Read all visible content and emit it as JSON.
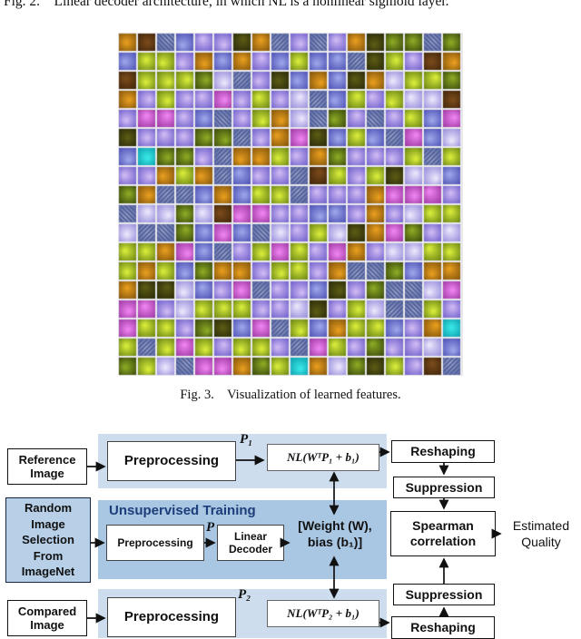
{
  "captions": {
    "fig2": "Fig. 2.    Linear decoder architecture, in which NL is a nonlinear sigmoid layer.",
    "fig3": "Fig. 3.    Visualization of learned features."
  },
  "colors": {
    "panel_light": "#cddded",
    "panel_mid": "#a9c6e2",
    "random_fill": "#b7d0e8",
    "title_blue": "#1c3f7b"
  },
  "features_grid": {
    "rows": 18,
    "cols": 18,
    "cell": 21,
    "patch": 19,
    "seed": 7,
    "background": "#e9e9ec",
    "patch_types": [
      {
        "name": "violet",
        "center": "#cdb8f2",
        "edge": "#6656c8",
        "weight": 20
      },
      {
        "name": "blue-violet",
        "center": "#9aa4e8",
        "edge": "#4648b0",
        "weight": 10
      },
      {
        "name": "light-lavender",
        "center": "#eae4fb",
        "edge": "#8d84d8",
        "weight": 8
      },
      {
        "name": "lime",
        "center": "#d6ea3a",
        "edge": "#5f7a10",
        "weight": 14
      },
      {
        "name": "dark-green",
        "center": "#8aa824",
        "edge": "#32400a",
        "weight": 6
      },
      {
        "name": "orange",
        "center": "#e59c1e",
        "edge": "#7a4e0a",
        "weight": 10
      },
      {
        "name": "magenta",
        "center": "#ee82ee",
        "edge": "#93309b",
        "weight": 9
      },
      {
        "name": "dark-olive",
        "center": "#5a5a14",
        "edge": "#26260a",
        "weight": 5
      },
      {
        "name": "gabor-stripes",
        "center": "#aab2cc",
        "edge": "#52609e",
        "weight": 12,
        "striped": true
      },
      {
        "name": "cyan",
        "center": "#39e6e6",
        "edge": "#0898a8",
        "weight": 1
      },
      {
        "name": "brown",
        "center": "#7a4a1a",
        "edge": "#3a220a",
        "weight": 3
      }
    ]
  },
  "diagram": {
    "reference_image": "Reference\nImage",
    "compared_image": "Compared\nImage",
    "random_selection": "Random\nImage\nSelection\nFrom\nImageNet",
    "preprocessing_top": "Preprocessing",
    "preprocessing_mid": "Preprocessing",
    "preprocessing_bottom": "Preprocessing",
    "p1": "P₁",
    "p": "P",
    "p2": "P₂",
    "nl_top": "NL(WᵀP₁ + b₁)",
    "nl_bottom": "NL(WᵀP₂ + b₁)",
    "unsupervised_title": "Unsupervised Training",
    "linear_decoder": "Linear\nDecoder",
    "weight_bias": "[Weight (W),\nbias (b₁)]",
    "reshaping_top": "Reshaping",
    "reshaping_bottom": "Reshaping",
    "suppression_top": "Suppression",
    "suppression_bottom": "Suppression",
    "spearman": "Spearman\ncorrelation",
    "estimated_quality": "Estimated\nQuality"
  }
}
